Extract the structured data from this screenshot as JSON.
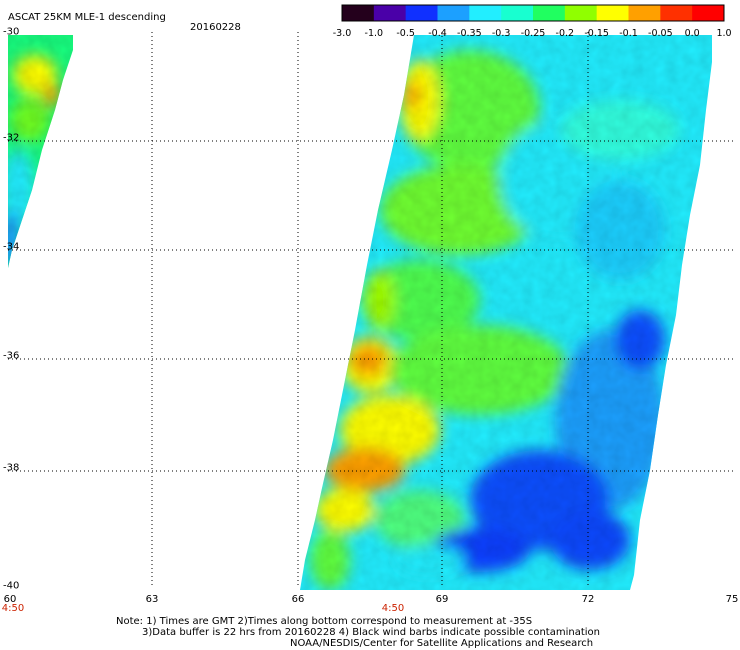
{
  "header": {
    "title": "ASCAT 25KM MLE-1 descending",
    "date": "20160228"
  },
  "colorbar": {
    "labels": [
      "-3.0",
      "-1.0",
      "-0.5",
      "-0.4",
      "-0.35",
      "-0.3",
      "-0.25",
      "-0.2",
      "-0.15",
      "-0.1",
      "-0.05",
      "0.0",
      "1.0"
    ],
    "colors": [
      "#24001c",
      "#4a00a8",
      "#1030ff",
      "#1ca0ff",
      "#22eeff",
      "#18ffd0",
      "#20ff60",
      "#90ff00",
      "#ffff00",
      "#ffa000",
      "#ff3000",
      "#ff0000"
    ]
  },
  "map": {
    "lat_labels": [
      "-30",
      "-32",
      "-34",
      "-36",
      "-38",
      "-40"
    ],
    "lon_labels": [
      "60",
      "63",
      "66",
      "69",
      "72",
      "75"
    ],
    "time_labels": [
      "4:50",
      "4:50"
    ]
  },
  "footer": {
    "note1": "Note: 1) Times are GMT 2)Times along bottom correspond to measurement at -35S",
    "note2": "3)Data buffer is 22 hrs from 20160228 4) Black wind barbs indicate possible contamination",
    "note3": "NOAA/NESDIS/Center for Satellite Applications and Research"
  }
}
